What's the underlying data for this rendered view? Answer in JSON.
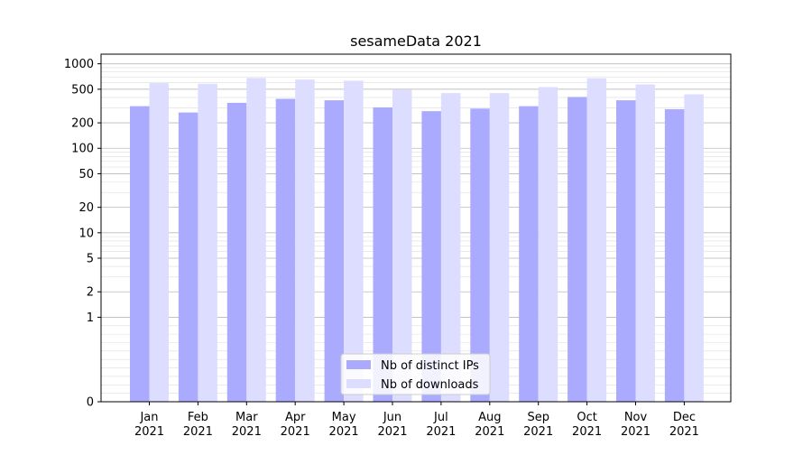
{
  "chart_data": {
    "type": "bar",
    "title": "sesameData 2021",
    "xlabel": "",
    "ylabel": "",
    "yscale": "symlog",
    "ylim": [
      0,
      1300
    ],
    "y_ticks": [
      0,
      1,
      2,
      5,
      10,
      20,
      50,
      100,
      200,
      500,
      1000
    ],
    "grid": true,
    "legend_position": "bottom-center",
    "categories": [
      [
        "Jan",
        "2021"
      ],
      [
        "Feb",
        "2021"
      ],
      [
        "Mar",
        "2021"
      ],
      [
        "Apr",
        "2021"
      ],
      [
        "May",
        "2021"
      ],
      [
        "Jun",
        "2021"
      ],
      [
        "Jul",
        "2021"
      ],
      [
        "Aug",
        "2021"
      ],
      [
        "Sep",
        "2021"
      ],
      [
        "Oct",
        "2021"
      ],
      [
        "Nov",
        "2021"
      ],
      [
        "Dec",
        "2021"
      ]
    ],
    "series": [
      {
        "name": "Nb of distinct IPs",
        "color": "#aaaaff",
        "values": [
          315,
          265,
          345,
          385,
          370,
          305,
          275,
          295,
          315,
          405,
          370,
          290
        ]
      },
      {
        "name": "Nb of downloads",
        "color": "#ddddff",
        "values": [
          590,
          580,
          680,
          650,
          630,
          495,
          450,
          450,
          530,
          675,
          570,
          435
        ]
      }
    ]
  }
}
